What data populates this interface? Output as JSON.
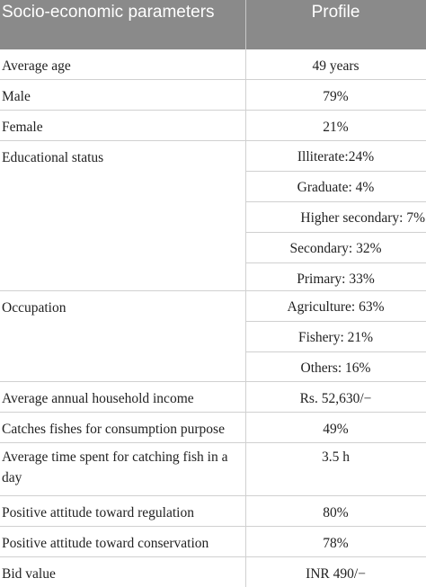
{
  "header": {
    "col1": "Socio-economic parameters",
    "col2": "Profile"
  },
  "rows": [
    {
      "label": "Average age",
      "value": "49 years"
    },
    {
      "label": "Male",
      "value": "79%"
    },
    {
      "label": "Female",
      "value": "21%"
    }
  ],
  "education": {
    "label": "Educational status",
    "values": [
      "Illiterate:24%",
      "Graduate: 4%",
      "Higher secondary: 7%",
      "Secondary: 32%",
      "Primary: 33%"
    ]
  },
  "occupation": {
    "label": "Occupation",
    "values": [
      "Agriculture: 63%",
      "Fishery: 21%",
      "Others: 16%"
    ]
  },
  "rows2": [
    {
      "label": "Average annual household income",
      "value": "Rs. 52,630/−"
    },
    {
      "label": "Catches fishes for consumption purpose",
      "value": "49%"
    },
    {
      "label": "Average time spent for catching fish in a day",
      "value": "3.5 h"
    },
    {
      "label": "Positive attitude toward regulation",
      "value": "80%"
    },
    {
      "label": "Positive attitude toward conservation",
      "value": "78%"
    },
    {
      "label": "Bid value",
      "value": "INR 490/−"
    }
  ]
}
